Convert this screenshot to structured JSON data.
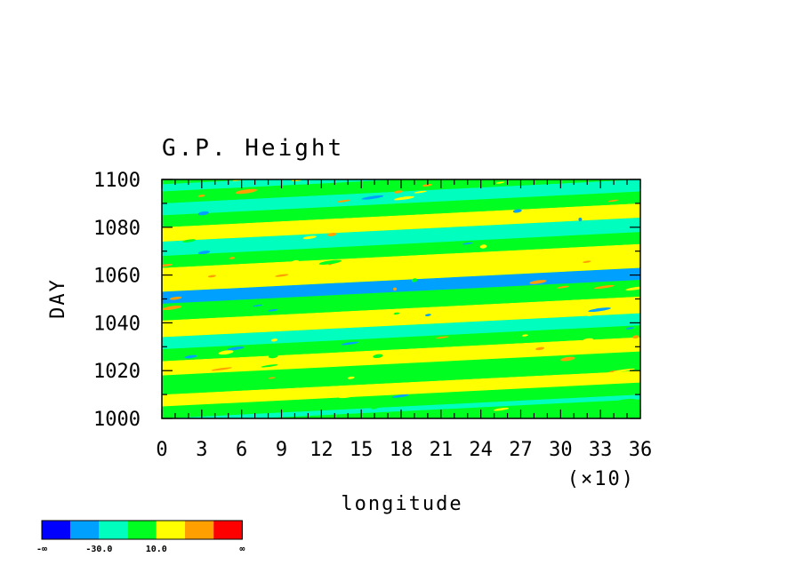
{
  "chart_data": {
    "type": "heatmap",
    "title": "G.P. Height",
    "xlabel": "longitude",
    "ylabel": "DAY",
    "x_scale_note": "(×10)",
    "xlim": [
      0,
      36
    ],
    "ylim": [
      1000,
      1100
    ],
    "x_ticks": [
      "0",
      "3",
      "6",
      "9",
      "12",
      "15",
      "18",
      "21",
      "24",
      "27",
      "30",
      "33",
      "36"
    ],
    "y_ticks": [
      "1000",
      "1020",
      "1040",
      "1060",
      "1080",
      "1100"
    ],
    "colorbar": {
      "colors": [
        "#0000ff",
        "#00a0ff",
        "#00ffbf",
        "#00ff20",
        "#ffff00",
        "#ffa000",
        "#ff0000"
      ],
      "labels": [
        "-∞",
        "-30.0",
        "10.0",
        "∞"
      ]
    },
    "bands": [
      {
        "d0": 1000,
        "d1": 1002,
        "color": "#00ffbf"
      },
      {
        "d0": 1002,
        "d1": 1007,
        "color": "#00ff20"
      },
      {
        "d0": 1007,
        "d1": 1012,
        "color": "#ffff00"
      },
      {
        "d0": 1012,
        "d1": 1020,
        "color": "#00ff20"
      },
      {
        "d0": 1020,
        "d1": 1026,
        "color": "#ffff00"
      },
      {
        "d0": 1026,
        "d1": 1031,
        "color": "#00ff20"
      },
      {
        "d0": 1031,
        "d1": 1036,
        "color": "#00ffbf"
      },
      {
        "d0": 1036,
        "d1": 1043,
        "color": "#ffff00"
      },
      {
        "d0": 1043,
        "d1": 1050,
        "color": "#00ff20"
      },
      {
        "d0": 1050,
        "d1": 1055,
        "color": "#00a0ff"
      },
      {
        "d0": 1055,
        "d1": 1065,
        "color": "#ffff00"
      },
      {
        "d0": 1065,
        "d1": 1070,
        "color": "#00ff20"
      },
      {
        "d0": 1070,
        "d1": 1076,
        "color": "#00ffbf"
      },
      {
        "d0": 1076,
        "d1": 1082,
        "color": "#ffff00"
      },
      {
        "d0": 1082,
        "d1": 1087,
        "color": "#00ff20"
      },
      {
        "d0": 1087,
        "d1": 1092,
        "color": "#00ffbf"
      },
      {
        "d0": 1092,
        "d1": 1097,
        "color": "#00ff20"
      },
      {
        "d0": 1097,
        "d1": 1100,
        "color": "#00ffbf"
      }
    ]
  }
}
